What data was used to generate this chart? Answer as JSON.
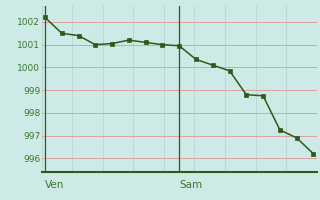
{
  "x": [
    0,
    1,
    2,
    3,
    4,
    5,
    6,
    7,
    8,
    9,
    10,
    11,
    12,
    13,
    14,
    15,
    16
  ],
  "y": [
    1002.2,
    1001.5,
    1001.4,
    1001.0,
    1001.05,
    1001.2,
    1001.1,
    1001.0,
    1000.95,
    1000.35,
    1000.1,
    999.85,
    998.8,
    998.75,
    997.25,
    996.9,
    996.2
  ],
  "ven_x": 0,
  "sam_x": 8,
  "xlim": [
    -0.2,
    16.2
  ],
  "ylim": [
    995.4,
    1002.7
  ],
  "yticks": [
    996,
    997,
    998,
    999,
    1000,
    1001,
    1002
  ],
  "line_color": "#2d5a1b",
  "bg_color": "#ceeae6",
  "grid_color_h": "#dda0a0",
  "grid_color_v": "#b8d8d4",
  "spine_color": "#2d5a1b",
  "label_color": "#3a7a2a",
  "tick_label_color": "#3a7a2a",
  "ven_label": "Ven",
  "sam_label": "Sam",
  "fontsize_ticks": 6.5,
  "fontsize_labels": 7.5
}
